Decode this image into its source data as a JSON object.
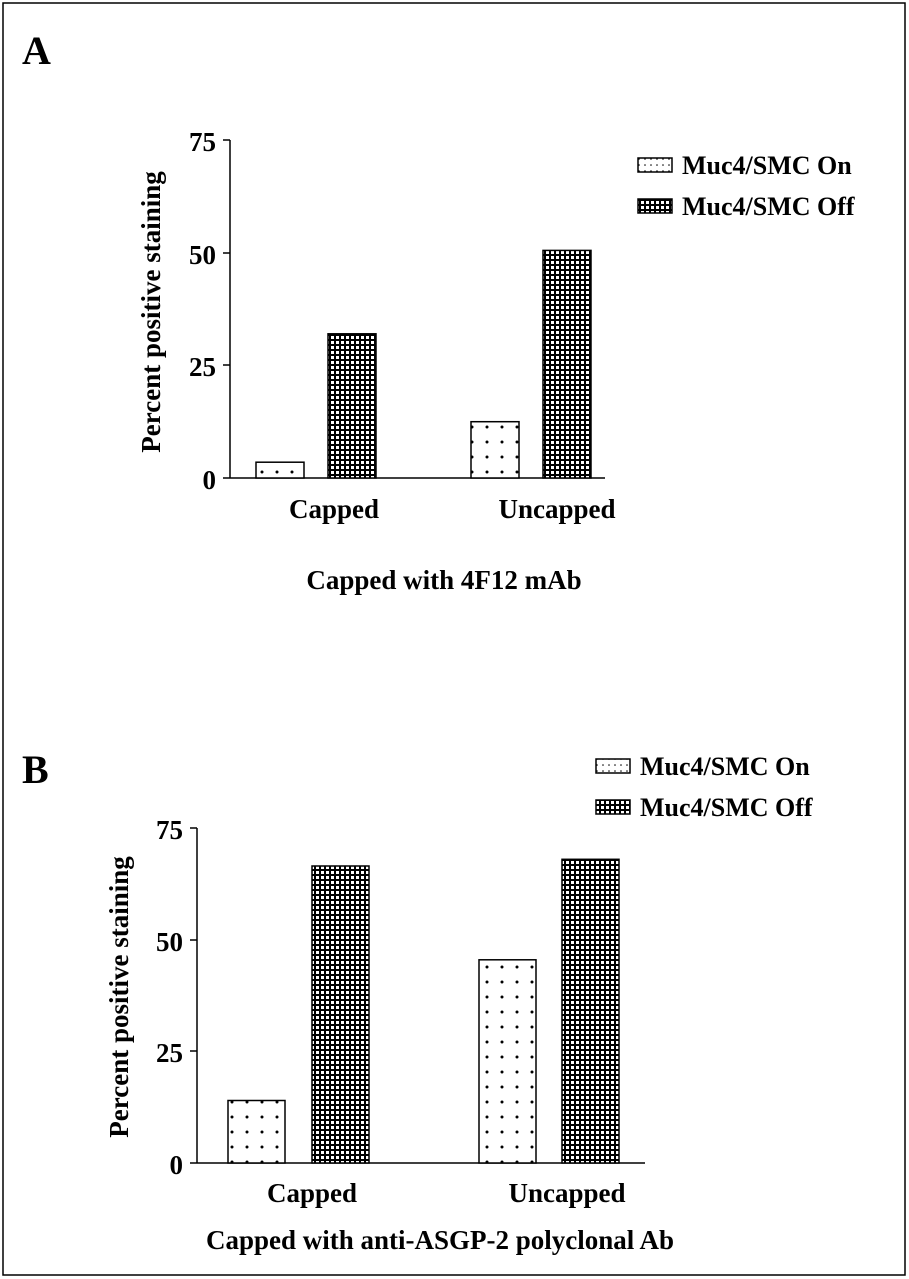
{
  "panels": [
    {
      "letter": "A",
      "ylabel": "Percent positive staining",
      "xlabel": "Capped with 4F12 mAb",
      "legend": [
        "Muc4/SMC On",
        "Muc4/SMC Off"
      ],
      "yticks": [
        "0",
        "25",
        "50",
        "75"
      ]
    },
    {
      "letter": "B",
      "ylabel": "Percent positive staining",
      "xlabel": "Capped with anti-ASGP-2 polyclonal Ab",
      "legend": [
        "Muc4/SMC On",
        "Muc4/SMC Off"
      ],
      "yticks": [
        "0",
        "25",
        "50",
        "75"
      ]
    }
  ],
  "chart_data": [
    {
      "type": "bar",
      "title": "",
      "panel_label": "A",
      "categories": [
        "Capped",
        "Uncapped"
      ],
      "series": [
        {
          "name": "Muc4/SMC On",
          "values": [
            3.5,
            12.5
          ]
        },
        {
          "name": "Muc4/SMC Off",
          "values": [
            32,
            50.5
          ]
        }
      ],
      "xlabel": "Capped with 4F12 mAb",
      "ylabel": "Percent positive staining",
      "ylim": [
        0,
        75
      ],
      "grid": false,
      "legend_position": "top-right"
    },
    {
      "type": "bar",
      "title": "",
      "panel_label": "B",
      "categories": [
        "Capped",
        "Uncapped"
      ],
      "series": [
        {
          "name": "Muc4/SMC On",
          "values": [
            14,
            45.5
          ]
        },
        {
          "name": "Muc4/SMC Off",
          "values": [
            66.5,
            68
          ]
        }
      ],
      "xlabel": "Capped with anti-ASGP-2 polyclonal Ab",
      "ylabel": "Percent positive staining",
      "ylim": [
        0,
        75
      ],
      "grid": false,
      "legend_position": "top-right"
    }
  ]
}
